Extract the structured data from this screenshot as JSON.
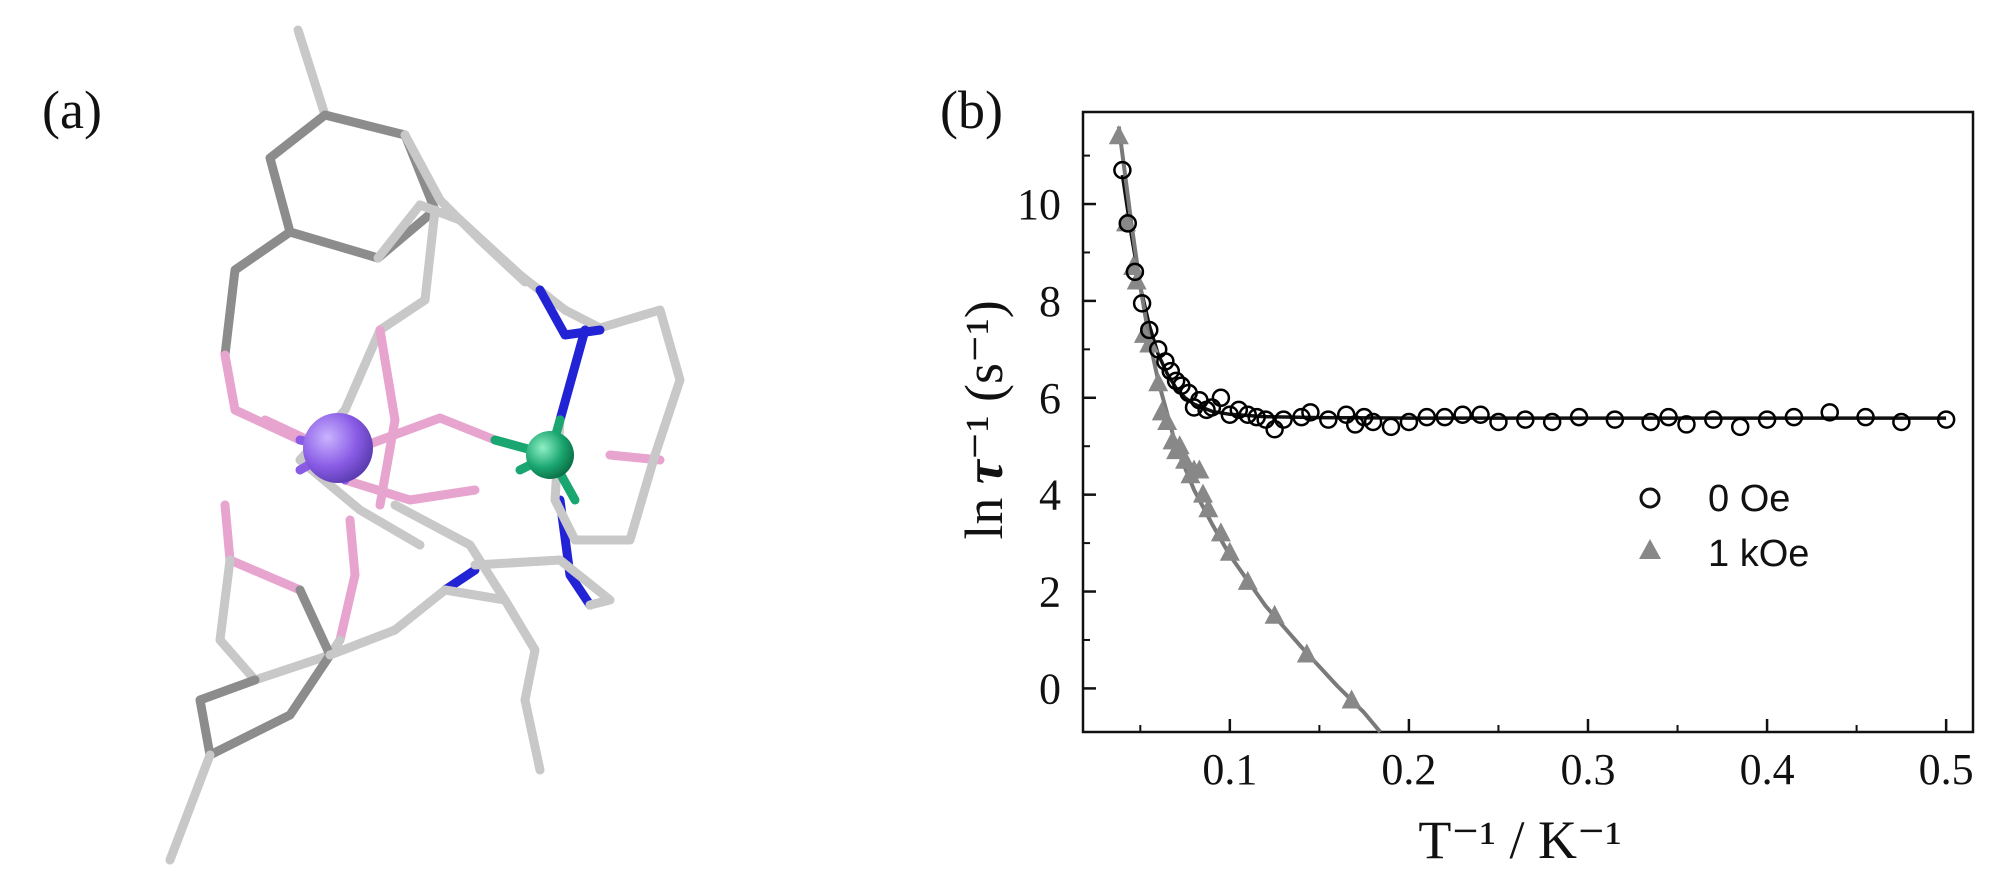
{
  "panel_a": {
    "label": "(a)",
    "colors": {
      "bond": "#c8c8c8",
      "bond_dark": "#8c8c8c",
      "oxygen": "#e7a4cf",
      "nitrogen": "#2323d6",
      "metal_large": "#8a5ce6",
      "metal_small": "#1aa670"
    }
  },
  "panel_b": {
    "label": "(b)",
    "xlabel": "T⁻¹ / K⁻¹",
    "ylabel_prefix": "ln ",
    "ylabel_symbol": "τ",
    "ylabel_suffix": "⁻¹ (s⁻¹)",
    "x_tick_labels": [
      "0.1",
      "0.2",
      "0.3",
      "0.4",
      "0.5"
    ],
    "y_tick_labels": [
      "0",
      "2",
      "4",
      "6",
      "8",
      "10"
    ],
    "legend": [
      "0 Oe",
      "1 kOe"
    ]
  },
  "chart_data": {
    "type": "scatter",
    "title": "",
    "xlabel": "T⁻¹ / K⁻¹",
    "ylabel": "ln τ⁻¹ (s⁻¹)",
    "xlim": [
      0.018,
      0.515
    ],
    "ylim": [
      -0.9,
      11.9
    ],
    "x_ticks": [
      0.1,
      0.2,
      0.3,
      0.4,
      0.5
    ],
    "y_ticks": [
      0,
      2,
      4,
      6,
      8,
      10
    ],
    "grid": false,
    "legend_position": "center-right",
    "series": [
      {
        "name": "0 Oe",
        "marker": "open-circle",
        "color": "#000000",
        "points": [
          [
            0.04,
            10.7
          ],
          [
            0.043,
            9.6
          ],
          [
            0.047,
            8.6
          ],
          [
            0.051,
            7.95
          ],
          [
            0.055,
            7.4
          ],
          [
            0.06,
            7.0
          ],
          [
            0.064,
            6.75
          ],
          [
            0.067,
            6.55
          ],
          [
            0.07,
            6.35
          ],
          [
            0.073,
            6.25
          ],
          [
            0.077,
            6.1
          ],
          [
            0.08,
            5.8
          ],
          [
            0.083,
            5.95
          ],
          [
            0.087,
            5.75
          ],
          [
            0.09,
            5.8
          ],
          [
            0.095,
            6.0
          ],
          [
            0.1,
            5.65
          ],
          [
            0.105,
            5.75
          ],
          [
            0.11,
            5.65
          ],
          [
            0.115,
            5.6
          ],
          [
            0.12,
            5.55
          ],
          [
            0.125,
            5.35
          ],
          [
            0.13,
            5.55
          ],
          [
            0.14,
            5.6
          ],
          [
            0.145,
            5.7
          ],
          [
            0.155,
            5.55
          ],
          [
            0.165,
            5.65
          ],
          [
            0.17,
            5.45
          ],
          [
            0.175,
            5.6
          ],
          [
            0.18,
            5.5
          ],
          [
            0.19,
            5.4
          ],
          [
            0.2,
            5.5
          ],
          [
            0.21,
            5.6
          ],
          [
            0.22,
            5.6
          ],
          [
            0.23,
            5.65
          ],
          [
            0.24,
            5.65
          ],
          [
            0.25,
            5.5
          ],
          [
            0.265,
            5.55
          ],
          [
            0.28,
            5.5
          ],
          [
            0.295,
            5.6
          ],
          [
            0.315,
            5.55
          ],
          [
            0.335,
            5.5
          ],
          [
            0.345,
            5.6
          ],
          [
            0.355,
            5.45
          ],
          [
            0.37,
            5.55
          ],
          [
            0.385,
            5.4
          ],
          [
            0.4,
            5.55
          ],
          [
            0.415,
            5.6
          ],
          [
            0.435,
            5.7
          ],
          [
            0.455,
            5.6
          ],
          [
            0.475,
            5.5
          ],
          [
            0.5,
            5.55
          ]
        ],
        "fit": [
          [
            0.04,
            10.6
          ],
          [
            0.045,
            9.35
          ],
          [
            0.05,
            8.3
          ],
          [
            0.055,
            7.5
          ],
          [
            0.06,
            6.9
          ],
          [
            0.065,
            6.5
          ],
          [
            0.07,
            6.2
          ],
          [
            0.075,
            6.0
          ],
          [
            0.08,
            5.87
          ],
          [
            0.09,
            5.72
          ],
          [
            0.1,
            5.66
          ],
          [
            0.12,
            5.61
          ],
          [
            0.15,
            5.59
          ],
          [
            0.2,
            5.58
          ],
          [
            0.3,
            5.58
          ],
          [
            0.4,
            5.58
          ],
          [
            0.5,
            5.58
          ]
        ]
      },
      {
        "name": "1 kOe",
        "marker": "filled-triangle",
        "color": "#888888",
        "points": [
          [
            0.038,
            11.4
          ],
          [
            0.042,
            9.6
          ],
          [
            0.046,
            8.7
          ],
          [
            0.048,
            8.4
          ],
          [
            0.052,
            7.3
          ],
          [
            0.055,
            7.1
          ],
          [
            0.06,
            6.3
          ],
          [
            0.062,
            5.7
          ],
          [
            0.065,
            5.5
          ],
          [
            0.068,
            5.1
          ],
          [
            0.07,
            4.9
          ],
          [
            0.072,
            5.0
          ],
          [
            0.075,
            4.7
          ],
          [
            0.078,
            4.4
          ],
          [
            0.08,
            4.5
          ],
          [
            0.083,
            4.5
          ],
          [
            0.085,
            4.0
          ],
          [
            0.088,
            3.7
          ],
          [
            0.095,
            3.2
          ],
          [
            0.1,
            2.8
          ],
          [
            0.11,
            2.2
          ],
          [
            0.125,
            1.5
          ],
          [
            0.143,
            0.7
          ],
          [
            0.168,
            -0.25
          ]
        ],
        "fit": [
          [
            0.038,
            11.6
          ],
          [
            0.045,
            9.6
          ],
          [
            0.05,
            8.3
          ],
          [
            0.055,
            7.2
          ],
          [
            0.06,
            6.35
          ],
          [
            0.07,
            5.0
          ],
          [
            0.08,
            4.1
          ],
          [
            0.09,
            3.4
          ],
          [
            0.1,
            2.75
          ],
          [
            0.12,
            1.7
          ],
          [
            0.14,
            0.85
          ],
          [
            0.16,
            0.05
          ],
          [
            0.175,
            -0.5
          ],
          [
            0.184,
            -0.9
          ]
        ]
      }
    ]
  }
}
